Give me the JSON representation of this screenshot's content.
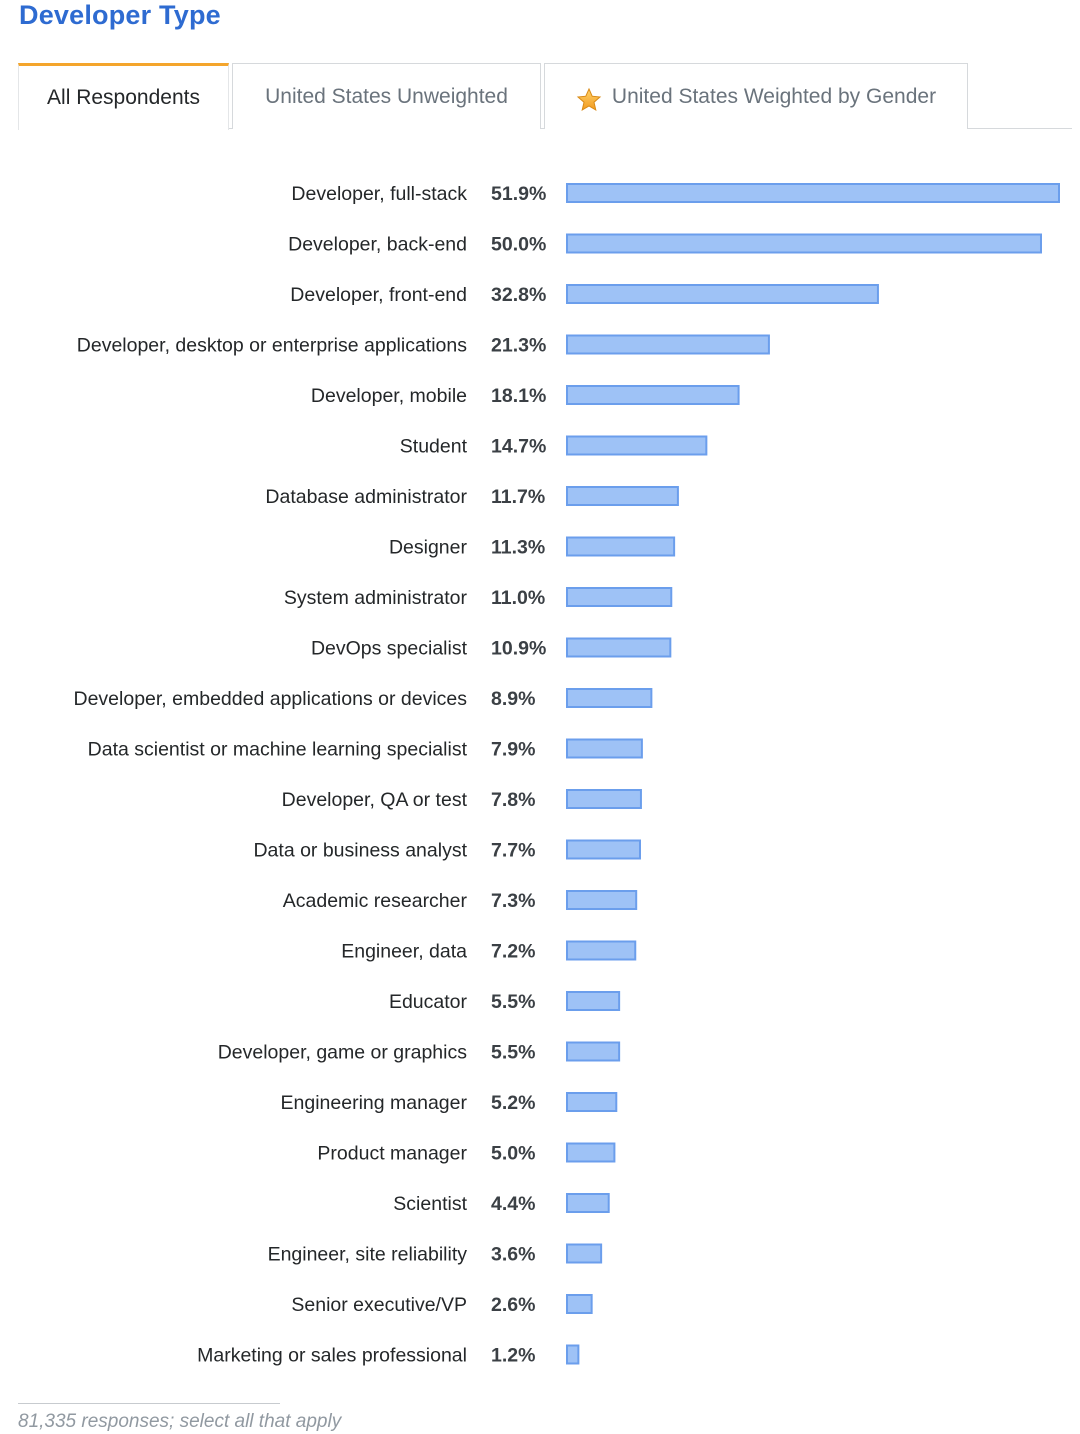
{
  "header": {
    "title": "Developer Type"
  },
  "tabs": [
    {
      "label": "All Respondents",
      "active": true
    },
    {
      "label": "United States Unweighted",
      "active": false
    },
    {
      "label": "United States Weighted by Gender",
      "active": false,
      "icon": "star-icon"
    }
  ],
  "colors": {
    "bar_fill": "#9ec2f6",
    "bar_stroke": "#6b9eec",
    "title": "#2e6bd1",
    "active_tab_accent": "#f4a52c"
  },
  "chart_data": {
    "type": "bar",
    "orientation": "horizontal",
    "categories": [
      "Developer, full-stack",
      "Developer, back-end",
      "Developer, front-end",
      "Developer, desktop or enterprise applications",
      "Developer, mobile",
      "Student",
      "Database administrator",
      "Designer",
      "System administrator",
      "DevOps specialist",
      "Developer, embedded applications or devices",
      "Data scientist or machine learning specialist",
      "Developer, QA or test",
      "Data or business analyst",
      "Academic researcher",
      "Engineer, data",
      "Educator",
      "Developer, game or graphics",
      "Engineering manager",
      "Product manager",
      "Scientist",
      "Engineer, site reliability",
      "Senior executive/VP",
      "Marketing or sales professional"
    ],
    "values": [
      51.9,
      50.0,
      32.8,
      21.3,
      18.1,
      14.7,
      11.7,
      11.3,
      11.0,
      10.9,
      8.9,
      7.9,
      7.8,
      7.7,
      7.3,
      7.2,
      5.5,
      5.5,
      5.2,
      5.0,
      4.4,
      3.6,
      2.6,
      1.2
    ],
    "value_labels": [
      "51.9%",
      "50.0%",
      "32.8%",
      "21.3%",
      "18.1%",
      "14.7%",
      "11.7%",
      "11.3%",
      "11.0%",
      "10.9%",
      "8.9%",
      "7.9%",
      "7.8%",
      "7.7%",
      "7.3%",
      "7.2%",
      "5.5%",
      "5.5%",
      "5.2%",
      "5.0%",
      "4.4%",
      "3.6%",
      "2.6%",
      "1.2%"
    ],
    "unit": "%",
    "xlim": [
      0,
      51.9
    ],
    "grid": false,
    "legend": "none"
  },
  "footer": {
    "note": "81,335 responses; select all that apply"
  }
}
